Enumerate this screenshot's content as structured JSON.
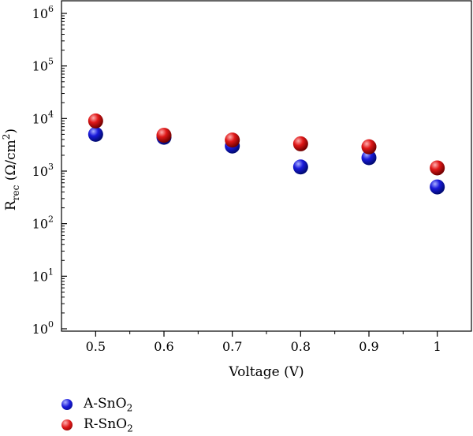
{
  "chart_data": {
    "type": "scatter",
    "xlabel": "Voltage (V)",
    "ylabel": {
      "base": "R",
      "sub": "rec",
      "rest": " (Ω/cm",
      "sup": "2",
      "close": ")"
    },
    "x_ticks": [
      "0.5",
      "0.6",
      "0.7",
      "0.8",
      "0.9",
      "1"
    ],
    "x_tick_values": [
      0.5,
      0.6,
      0.7,
      0.8,
      0.9,
      1.0
    ],
    "xlim": [
      0.45,
      1.05
    ],
    "y_scale": "log",
    "ylim": [
      1,
      1000000
    ],
    "y_ticks": [
      {
        "value": 1,
        "base": "10",
        "exp": "0"
      },
      {
        "value": 10,
        "base": "10",
        "exp": "1"
      },
      {
        "value": 100,
        "base": "10",
        "exp": "2"
      },
      {
        "value": 1000,
        "base": "10",
        "exp": "3"
      },
      {
        "value": 10000,
        "base": "10",
        "exp": "4"
      },
      {
        "value": 100000,
        "base": "10",
        "exp": "5"
      },
      {
        "value": 1000000,
        "base": "10",
        "exp": "6"
      }
    ],
    "grid": false,
    "legend_position": "bottom-left",
    "series": [
      {
        "name": "A-SnO2",
        "label": {
          "main": "A-SnO",
          "sub": "2"
        },
        "color": "#1a1adb",
        "x": [
          0.5,
          0.6,
          0.7,
          0.8,
          0.9,
          1.0
        ],
        "y": [
          5000,
          4400,
          3000,
          1200,
          1800,
          500
        ]
      },
      {
        "name": "R-SnO2",
        "label": {
          "main": "R-SnO",
          "sub": "2"
        },
        "color": "#e01818",
        "x": [
          0.5,
          0.6,
          0.7,
          0.8,
          0.9,
          1.0
        ],
        "y": [
          9000,
          4800,
          3900,
          3300,
          2900,
          1150
        ]
      }
    ]
  }
}
